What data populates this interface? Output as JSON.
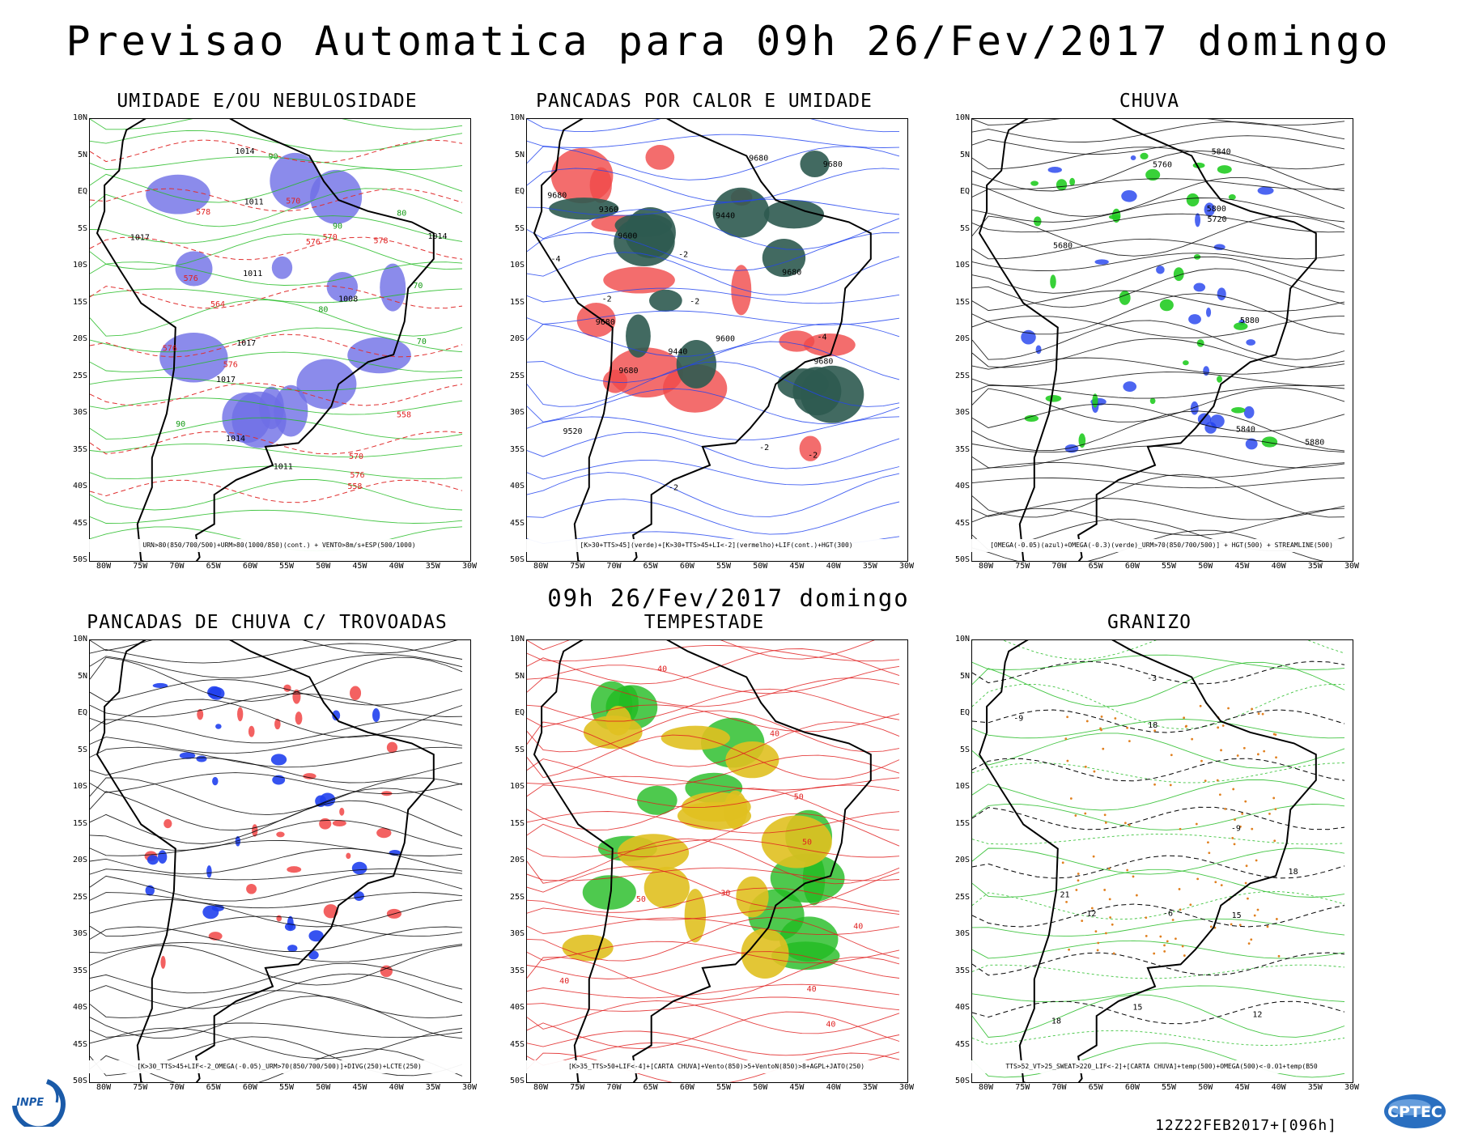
{
  "header": {
    "title": "Previsao Automatica  para 09h 26/Fev/2017 domingo"
  },
  "middle_title": "09h 26/Fev/2017 domingo",
  "axes": {
    "lat_labels": [
      "10N",
      "5N",
      "EQ",
      "5S",
      "10S",
      "15S",
      "20S",
      "25S",
      "30S",
      "35S",
      "40S",
      "45S",
      "50S"
    ],
    "lon_labels": [
      "80W",
      "75W",
      "70W",
      "65W",
      "60W",
      "55W",
      "50W",
      "45W",
      "40W",
      "35W",
      "30W"
    ]
  },
  "panels": [
    {
      "id": "umidade",
      "title": "UMIDADE E/OU NEBULOSIDADE",
      "legend": "URN>80(850/700/500)+URM>80(1000/850)(cont.) + VENTO>8m/s+ESP(500/1000)",
      "labels": [
        "1014",
        "1011",
        "1011",
        "1017",
        "1017",
        "1008",
        "1014",
        "1014",
        "1017",
        "1011",
        "570",
        "570",
        "576",
        "576",
        "576",
        "578",
        "570",
        "576",
        "576",
        "578",
        "558",
        "564",
        "558",
        "90",
        "90",
        "80",
        "70",
        "90",
        "80",
        "70"
      ],
      "colors": {
        "fill": "#6e6ee6",
        "contour": "#22bb22",
        "dash": "#e03030",
        "isobar": "#000000"
      }
    },
    {
      "id": "pancadas-calor",
      "title": "PANCADAS POR CALOR E UMIDADE",
      "legend": "[K>30+TTS>45](verde)+[K>30+TTS>45+LI<-2](vermelho)+LIF(cont.)+HGT(300)",
      "labels": [
        "9680",
        "9680",
        "9680",
        "9680",
        "9680",
        "9680",
        "9680",
        "9600",
        "9600",
        "9520",
        "9440",
        "9440",
        "9360",
        "-2",
        "-2",
        "-2",
        "-2",
        "-4",
        "-4",
        "-2",
        "-2"
      ],
      "colors": {
        "fill": "#f04848",
        "fill2": "#2d5a50",
        "contour": "#2244ee",
        "isobar": "#000000"
      }
    },
    {
      "id": "chuva",
      "title": "CHUVA",
      "legend": "[OMEGA(-0.05)(azul)+OMEGA(-0.3)(verde)_URM>70(850/700/500)] + HGT(500) + STREAMLINE(500)",
      "labels": [
        "5880",
        "5880",
        "5840",
        "5840",
        "5800",
        "5760",
        "5680",
        "5720"
      ],
      "colors": {
        "fill": "#2040ee",
        "fill2": "#22cc22",
        "isobar": "#000000"
      }
    },
    {
      "id": "trovoadas",
      "title": "PANCADAS DE CHUVA C/ TROVOADAS",
      "legend": "[K>30_TTS>45+LIF<-2_OMEGA(-0.05)_URM>70(850/700/500)]+DIVG(250)+LCTE(250)",
      "labels": [],
      "colors": {
        "fill": "#f03a3a",
        "fill2": "#2040ee",
        "isobar": "#000000"
      }
    },
    {
      "id": "tempestade",
      "title": "TEMPESTADE",
      "legend": "[K>35_TTS>50+LIF<-4]+[CARTA CHUVA]+Vento(850)>5+VentoN(850)>8+AGPL+JATO(250)",
      "labels": [
        "40",
        "50",
        "40",
        "50",
        "40",
        "40",
        "30",
        "40",
        "40",
        "50"
      ],
      "colors": {
        "fill": "#22bb22",
        "fill2": "#e0c020",
        "contour": "#e02020",
        "mark": "#a020c0"
      }
    },
    {
      "id": "granizo",
      "title": "GRANIZO",
      "legend": "TTS>52_VT>25_SWEAT>220_LIF<-2]+[CARTA CHUVA]+temp(500)+OMEGA(500)<-0.01+temp(B50",
      "labels": [
        "18",
        "18",
        "15",
        "12",
        "21",
        "18",
        "15",
        "12",
        "-6",
        "-9",
        "-3",
        "-9"
      ],
      "colors": {
        "contour": "#22bb22",
        "dash": "#000000",
        "dots": "#e08020"
      }
    }
  ],
  "footer": {
    "run": "12Z22FEB2017+[096h]"
  },
  "logos": {
    "inpe": "INPE",
    "cptec": "CPTEC"
  }
}
